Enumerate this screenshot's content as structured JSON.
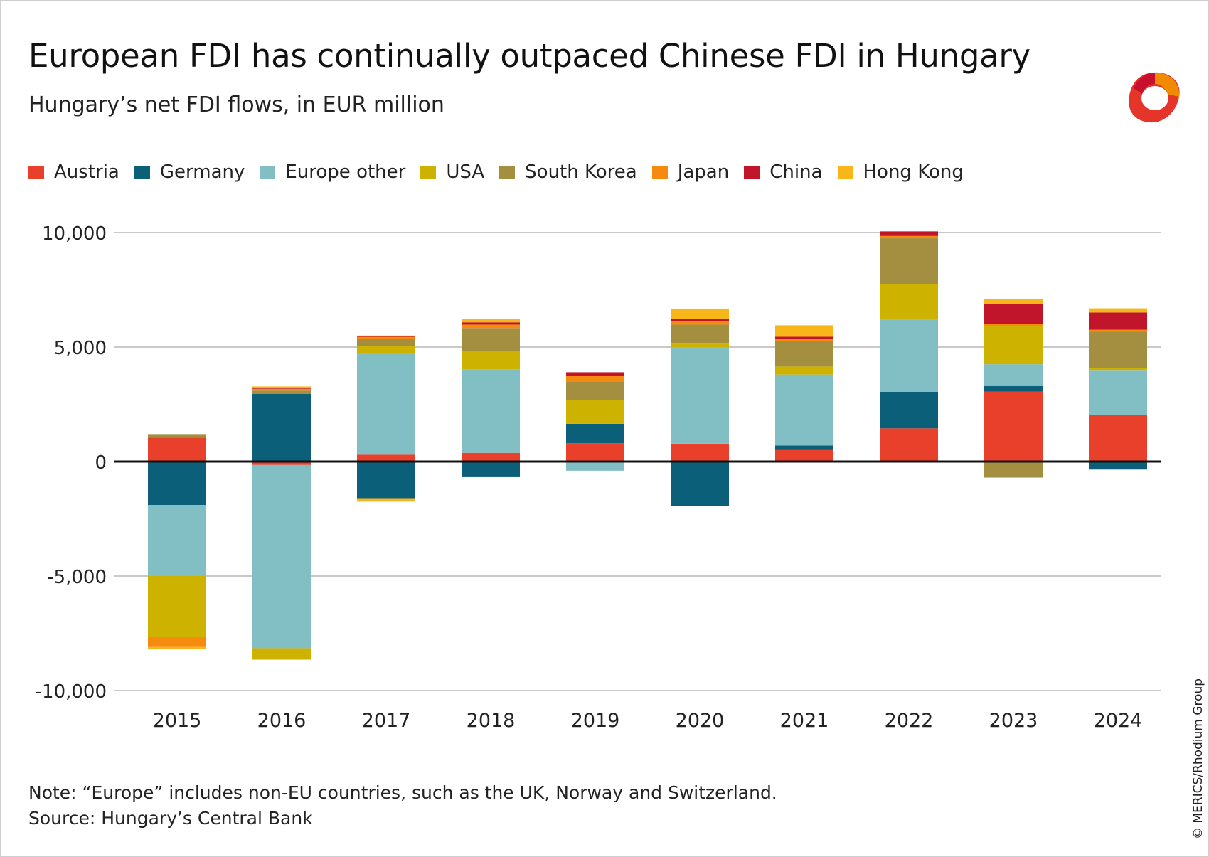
{
  "header": {
    "title": "European FDI has continually outpaced Chinese FDI in Hungary",
    "subtitle": "Hungary’s net FDI flows, in EUR million"
  },
  "footer": {
    "note": "Note: “Europe” includes non-EU countries, such as the UK, Norway and Switzerland.",
    "source": "Source: Hungary’s Central Bank",
    "copyright": "© MERICS/Rhodium Group"
  },
  "logo": {
    "icon": "merics-ring-icon",
    "colors": [
      "#e5342a",
      "#c8102e",
      "#f08a00"
    ]
  },
  "chart_data": {
    "type": "bar",
    "stacked": true,
    "title": "European FDI has continually outpaced Chinese FDI in Hungary",
    "subtitle": "Hungary’s net FDI flows, in EUR million",
    "xlabel": "",
    "ylabel": "",
    "ylim": [
      -10000,
      10000
    ],
    "yticks": [
      10000,
      5000,
      0,
      -5000,
      -10000
    ],
    "ytick_labels": [
      "10,000",
      "5,000",
      "0",
      "-5,000",
      "-10,000"
    ],
    "grid": true,
    "legend_position": "top",
    "categories": [
      "2015",
      "2016",
      "2017",
      "2018",
      "2019",
      "2020",
      "2021",
      "2022",
      "2023",
      "2024"
    ],
    "series": [
      {
        "name": "Austria",
        "color": "#e8402a",
        "values": [
          1050,
          -150,
          300,
          380,
          800,
          780,
          500,
          1450,
          3050,
          2050
        ]
      },
      {
        "name": "Germany",
        "color": "#0c5f78",
        "values": [
          -1900,
          2950,
          -1600,
          -650,
          850,
          -1950,
          200,
          1600,
          250,
          -350
        ]
      },
      {
        "name": "Europe other",
        "color": "#82bfc5",
        "values": [
          -3100,
          -8000,
          4450,
          3650,
          -400,
          4200,
          3100,
          3150,
          950,
          1950
        ]
      },
      {
        "name": "USA",
        "color": "#cdb200",
        "values": [
          -2650,
          -500,
          300,
          800,
          1050,
          200,
          350,
          1550,
          1650,
          80
        ]
      },
      {
        "name": "South Korea",
        "color": "#a48e40",
        "values": [
          150,
          150,
          300,
          1000,
          800,
          800,
          1100,
          2000,
          -700,
          1600
        ]
      },
      {
        "name": "Japan",
        "color": "#f58a0e",
        "values": [
          -450,
          80,
          100,
          150,
          250,
          150,
          100,
          100,
          100,
          80
        ]
      },
      {
        "name": "China",
        "color": "#c0152a",
        "values": [
          0,
          50,
          50,
          100,
          150,
          100,
          100,
          200,
          900,
          750
        ]
      },
      {
        "name": "Hong Kong",
        "color": "#f9b61a",
        "values": [
          -100,
          50,
          -150,
          150,
          0,
          450,
          500,
          0,
          200,
          180
        ]
      }
    ]
  }
}
